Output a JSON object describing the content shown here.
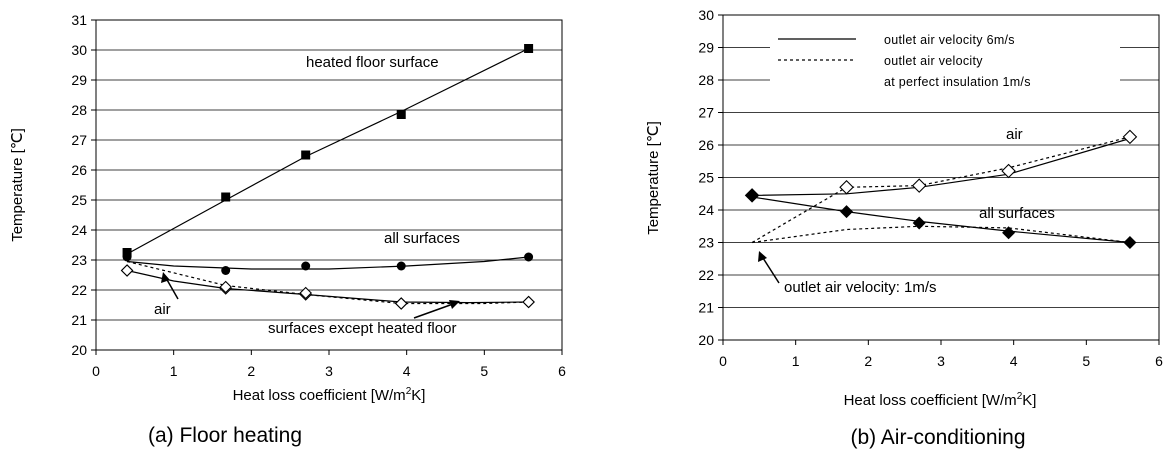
{
  "chart_data": [
    {
      "type": "line",
      "caption": "(a) Floor heating",
      "xlabel": "Heat loss coefficient [W/m2K]",
      "ylabel": "Temperature [℃]",
      "xlim": [
        0,
        6
      ],
      "ylim": [
        20,
        31
      ],
      "xticks": [
        0,
        1,
        2,
        3,
        4,
        5,
        6
      ],
      "yticks": [
        20,
        21,
        22,
        23,
        24,
        25,
        26,
        27,
        28,
        29,
        30,
        31
      ],
      "grid": "horizontal",
      "series": [
        {
          "label": "heated floor surface",
          "marker": "square",
          "points": [
            [
              0.4,
              23.25
            ],
            [
              1.67,
              25.1
            ],
            [
              2.7,
              26.5
            ],
            [
              3.93,
              27.85
            ],
            [
              5.57,
              30.05
            ]
          ],
          "fit": [
            [
              0.4,
              23.2
            ],
            [
              1.67,
              25.0
            ],
            [
              2.7,
              26.45
            ],
            [
              3.93,
              27.95
            ],
            [
              5.57,
              30.05
            ]
          ]
        },
        {
          "label": "all surfaces",
          "marker": "circle",
          "points": [
            [
              0.4,
              23.1
            ],
            [
              1.67,
              22.65
            ],
            [
              2.7,
              22.8
            ],
            [
              3.93,
              22.8
            ],
            [
              5.57,
              23.1
            ]
          ],
          "fit": [
            [
              0.4,
              22.95
            ],
            [
              1.0,
              22.8
            ],
            [
              2.0,
              22.7
            ],
            [
              3.0,
              22.7
            ],
            [
              4.0,
              22.8
            ],
            [
              5.0,
              22.95
            ],
            [
              5.57,
              23.1
            ]
          ]
        },
        {
          "label": "air",
          "marker": "diamond",
          "points": [
            [
              0.4,
              22.65
            ],
            [
              1.67,
              22.05
            ],
            [
              2.7,
              21.85
            ],
            [
              3.93,
              21.55
            ],
            [
              5.57,
              21.6
            ]
          ],
          "fit": [
            [
              0.4,
              22.65
            ],
            [
              1.0,
              22.3
            ],
            [
              1.67,
              22.05
            ],
            [
              2.7,
              21.85
            ],
            [
              3.93,
              21.6
            ],
            [
              4.8,
              21.58
            ],
            [
              5.57,
              21.6
            ]
          ]
        },
        {
          "label": "surfaces except heated floor",
          "marker": "diamond",
          "dashed": true,
          "points": [
            [
              0.4,
              22.65
            ],
            [
              1.67,
              22.1
            ],
            [
              2.7,
              21.9
            ],
            [
              3.93,
              21.55
            ],
            [
              5.57,
              21.6
            ]
          ],
          "fit": [
            [
              0.4,
              22.95
            ],
            [
              1.67,
              22.15
            ],
            [
              2.7,
              21.85
            ],
            [
              3.93,
              21.55
            ],
            [
              5.0,
              21.55
            ],
            [
              5.57,
              21.6
            ]
          ]
        }
      ],
      "annotations": [
        "heated floor surface",
        "all surfaces",
        "air",
        "surfaces except heated floor"
      ]
    },
    {
      "type": "line",
      "caption": "(b) Air-conditioning",
      "xlabel": "Heat loss coefficient [W/m2K]",
      "ylabel": "Temperature [℃]",
      "xlim": [
        0,
        6
      ],
      "ylim": [
        20,
        30
      ],
      "xticks": [
        0,
        1,
        2,
        3,
        4,
        5,
        6
      ],
      "yticks": [
        20,
        21,
        22,
        23,
        24,
        25,
        26,
        27,
        28,
        29,
        30
      ],
      "grid": "horizontal",
      "legend": {
        "placement": "top",
        "entries": [
          "outlet air velocity 6m/s",
          "outlet air velocity",
          "at perfect insulation 1m/s"
        ]
      },
      "series": [
        {
          "label": "air (6m/s)",
          "marker": "open-diamond",
          "points": [
            [
              0.4,
              24.45
            ],
            [
              1.7,
              24.7
            ],
            [
              2.7,
              24.75
            ],
            [
              3.93,
              25.2
            ],
            [
              5.6,
              26.25
            ]
          ],
          "fit": [
            [
              0.4,
              24.45
            ],
            [
              1.7,
              24.5
            ],
            [
              2.7,
              24.7
            ],
            [
              3.93,
              25.1
            ],
            [
              5.6,
              26.2
            ]
          ]
        },
        {
          "label": "all surfaces (6m/s)",
          "marker": "filled-diamond",
          "points": [
            [
              0.4,
              24.45
            ],
            [
              1.7,
              23.95
            ],
            [
              2.7,
              23.6
            ],
            [
              3.93,
              23.3
            ],
            [
              5.6,
              23.0
            ]
          ],
          "fit": [
            [
              0.4,
              24.4
            ],
            [
              1.7,
              23.95
            ],
            [
              2.7,
              23.65
            ],
            [
              3.93,
              23.35
            ],
            [
              5.6,
              23.0
            ]
          ]
        },
        {
          "label": "air (1m/s)",
          "dashed": true,
          "points": [
            [
              0.4,
              23.0
            ],
            [
              1.7,
              24.7
            ],
            [
              2.7,
              24.75
            ],
            [
              3.93,
              25.3
            ],
            [
              5.6,
              26.25
            ]
          ]
        },
        {
          "label": "all surfaces (1m/s)",
          "dashed": true,
          "points": [
            [
              0.4,
              23.0
            ],
            [
              1.7,
              23.4
            ],
            [
              2.7,
              23.5
            ],
            [
              3.93,
              23.45
            ],
            [
              5.6,
              23.0
            ]
          ]
        }
      ],
      "annotations": [
        "air",
        "all surfaces",
        "outlet air velocity: 1m/s"
      ]
    }
  ]
}
